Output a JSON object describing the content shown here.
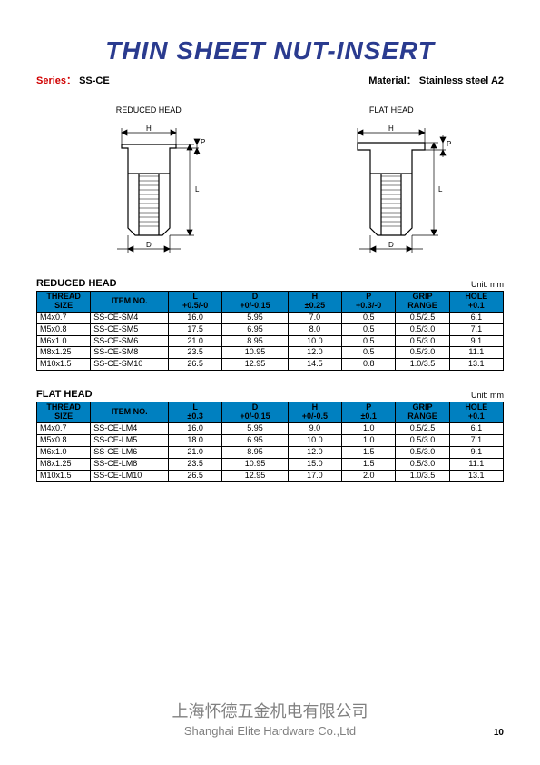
{
  "title": "THIN SHEET NUT-INSERT",
  "series_label": "Series：",
  "series_value": "SS-CE",
  "material_label": "Material：",
  "material_value": "Stainless steel A2",
  "diagrams": {
    "reduced_label": "REDUCED HEAD",
    "flat_label": "FLAT HEAD"
  },
  "tables": [
    {
      "name": "REDUCED HEAD",
      "unit": "Unit: mm",
      "columns": [
        {
          "l1": "THREAD",
          "l2": "SIZE"
        },
        {
          "l1": "ITEM NO.",
          "l2": ""
        },
        {
          "l1": "L",
          "l2": "+0.5/-0"
        },
        {
          "l1": "D",
          "l2": "+0/-0.15"
        },
        {
          "l1": "H",
          "l2": "±0.25"
        },
        {
          "l1": "P",
          "l2": "+0.3/-0"
        },
        {
          "l1": "GRIP",
          "l2": "RANGE"
        },
        {
          "l1": "HOLE",
          "l2": "+0.1"
        }
      ],
      "rows": [
        [
          "M4x0.7",
          "SS-CE-SM4",
          "16.0",
          "5.95",
          "7.0",
          "0.5",
          "0.5/2.5",
          "6.1"
        ],
        [
          "M5x0.8",
          "SS-CE-SM5",
          "17.5",
          "6.95",
          "8.0",
          "0.5",
          "0.5/3.0",
          "7.1"
        ],
        [
          "M6x1.0",
          "SS-CE-SM6",
          "21.0",
          "8.95",
          "10.0",
          "0.5",
          "0.5/3.0",
          "9.1"
        ],
        [
          "M8x1.25",
          "SS-CE-SM8",
          "23.5",
          "10.95",
          "12.0",
          "0.5",
          "0.5/3.0",
          "11.1"
        ],
        [
          "M10x1.5",
          "SS-CE-SM10",
          "26.5",
          "12.95",
          "14.5",
          "0.8",
          "1.0/3.5",
          "13.1"
        ]
      ]
    },
    {
      "name": "FLAT HEAD",
      "unit": "Unit: mm",
      "columns": [
        {
          "l1": "THREAD",
          "l2": "SIZE"
        },
        {
          "l1": "ITEM NO.",
          "l2": ""
        },
        {
          "l1": "L",
          "l2": "±0.3"
        },
        {
          "l1": "D",
          "l2": "+0/-0.15"
        },
        {
          "l1": "H",
          "l2": "+0/-0.5"
        },
        {
          "l1": "P",
          "l2": "±0.1"
        },
        {
          "l1": "GRIP",
          "l2": "RANGE"
        },
        {
          "l1": "HOLE",
          "l2": "+0.1"
        }
      ],
      "rows": [
        [
          "M4x0.7",
          "SS-CE-LM4",
          "16.0",
          "5.95",
          "9.0",
          "1.0",
          "0.5/2.5",
          "6.1"
        ],
        [
          "M5x0.8",
          "SS-CE-LM5",
          "18.0",
          "6.95",
          "10.0",
          "1.0",
          "0.5/3.0",
          "7.1"
        ],
        [
          "M6x1.0",
          "SS-CE-LM6",
          "21.0",
          "8.95",
          "12.0",
          "1.5",
          "0.5/3.0",
          "9.1"
        ],
        [
          "M8x1.25",
          "SS-CE-LM8",
          "23.5",
          "10.95",
          "15.0",
          "1.5",
          "0.5/3.0",
          "11.1"
        ],
        [
          "M10x1.5",
          "SS-CE-LM10",
          "26.5",
          "12.95",
          "17.0",
          "2.0",
          "1.0/3.5",
          "13.1"
        ]
      ]
    }
  ],
  "footer": {
    "cn": "上海怀德五金机电有限公司",
    "en": "Shanghai Elite Hardware Co.,Ltd"
  },
  "page_number": "10",
  "colors": {
    "title": "#2a3b8f",
    "header_bg": "#0080c0",
    "series_label": "#d00000",
    "footer": "#808080"
  },
  "dim_labels": {
    "H": "H",
    "P": "P",
    "L": "L",
    "D": "D"
  }
}
